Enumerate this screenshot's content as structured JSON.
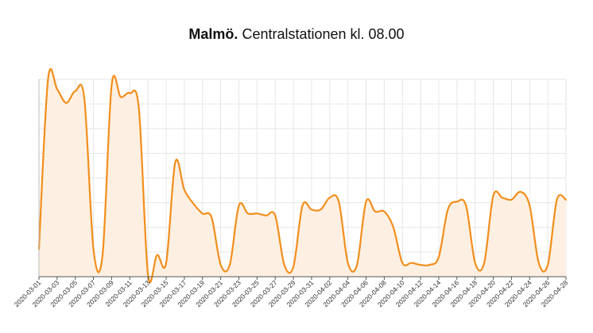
{
  "chart_data": {
    "type": "area",
    "title_bold": "Malmö.",
    "title_rest": " Centralstationen kl. 08.00",
    "xlabel": "",
    "ylabel": "",
    "grid": true,
    "legend": "none",
    "line_color": "#f28e1c",
    "fill_color": "#fdf0e2",
    "grid_color": "#e6e6e6",
    "ylim": [
      0,
      100
    ],
    "x_ticks": [
      "2020-03-01",
      "2020-03-03",
      "2020-03-05",
      "2020-03-07",
      "2020-03-09",
      "2020-03-11",
      "2020-03-13",
      "2020-03-15",
      "2020-03-17",
      "2020-03-19",
      "2020-03-21",
      "2020-03-23",
      "2020-03-25",
      "2020-03-27",
      "2020-03-29",
      "2020-03-31",
      "2020-04-02",
      "2020-04-04",
      "2020-04-06",
      "2020-04-08",
      "2020-04-10",
      "2020-04-12",
      "2020-04-14",
      "2020-04-16",
      "2020-04-18",
      "2020-04-20",
      "2020-04-22",
      "2020-04-24",
      "2020-04-26",
      "2020-04-28"
    ],
    "x": [
      "2020-03-01",
      "2020-03-02",
      "2020-03-03",
      "2020-03-04",
      "2020-03-05",
      "2020-03-06",
      "2020-03-07",
      "2020-03-08",
      "2020-03-09",
      "2020-03-10",
      "2020-03-11",
      "2020-03-12",
      "2020-03-13",
      "2020-03-14",
      "2020-03-15",
      "2020-03-16",
      "2020-03-17",
      "2020-03-18",
      "2020-03-19",
      "2020-03-20",
      "2020-03-21",
      "2020-03-22",
      "2020-03-23",
      "2020-03-24",
      "2020-03-25",
      "2020-03-26",
      "2020-03-27",
      "2020-03-28",
      "2020-03-29",
      "2020-03-30",
      "2020-03-31",
      "2020-04-01",
      "2020-04-02",
      "2020-04-03",
      "2020-04-04",
      "2020-04-05",
      "2020-04-06",
      "2020-04-07",
      "2020-04-08",
      "2020-04-09",
      "2020-04-10",
      "2020-04-11",
      "2020-04-12",
      "2020-04-13",
      "2020-04-14",
      "2020-04-15",
      "2020-04-16",
      "2020-04-17",
      "2020-04-18",
      "2020-04-19",
      "2020-04-20",
      "2020-04-21",
      "2020-04-22",
      "2020-04-23",
      "2020-04-24",
      "2020-04-25",
      "2020-04-26",
      "2020-04-27",
      "2020-04-28"
    ],
    "values": [
      14,
      100,
      95,
      88,
      94,
      90,
      14,
      11,
      97,
      91,
      93,
      85,
      1,
      11,
      7,
      58,
      44,
      37,
      32,
      30,
      6,
      6,
      36,
      32,
      32,
      31,
      31,
      6,
      5,
      36,
      34,
      34,
      40,
      38,
      7,
      6,
      38,
      33,
      33,
      25,
      7,
      7,
      6,
      6,
      10,
      34,
      38,
      36,
      7,
      7,
      41,
      40,
      39,
      43,
      36,
      7,
      6,
      39,
      39
    ]
  }
}
